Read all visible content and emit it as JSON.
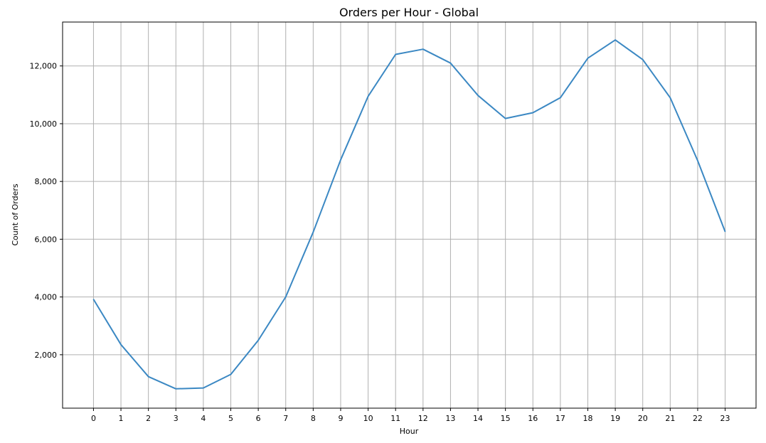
{
  "chart_data": {
    "type": "line",
    "title": "Orders per Hour - Global",
    "xlabel": "Hour",
    "ylabel": "Count of Orders",
    "x": [
      0,
      1,
      2,
      3,
      4,
      5,
      6,
      7,
      8,
      9,
      10,
      11,
      12,
      13,
      14,
      15,
      16,
      17,
      18,
      19,
      20,
      21,
      22,
      23
    ],
    "x_tick_labels": [
      "0",
      "1",
      "2",
      "3",
      "4",
      "5",
      "6",
      "7",
      "8",
      "9",
      "10",
      "11",
      "12",
      "13",
      "14",
      "15",
      "16",
      "17",
      "18",
      "19",
      "20",
      "21",
      "22",
      "23"
    ],
    "series": [
      {
        "values": [
          3920,
          2350,
          1240,
          820,
          850,
          1320,
          2500,
          4000,
          6250,
          8750,
          10950,
          12400,
          12580,
          12100,
          10980,
          10180,
          10380,
          10900,
          12270,
          12900,
          12220,
          10900,
          8720,
          6260
        ],
        "color": "#3b88c3"
      }
    ],
    "xlim": [
      -1.125,
      24.125
    ],
    "ylim": [
      150,
      13520
    ],
    "y_ticks": [
      2000,
      4000,
      6000,
      8000,
      10000,
      12000
    ],
    "y_tick_labels": [
      "2,000",
      "4,000",
      "6,000",
      "8,000",
      "10,000",
      "12,000"
    ],
    "grid": true,
    "legend": false
  }
}
